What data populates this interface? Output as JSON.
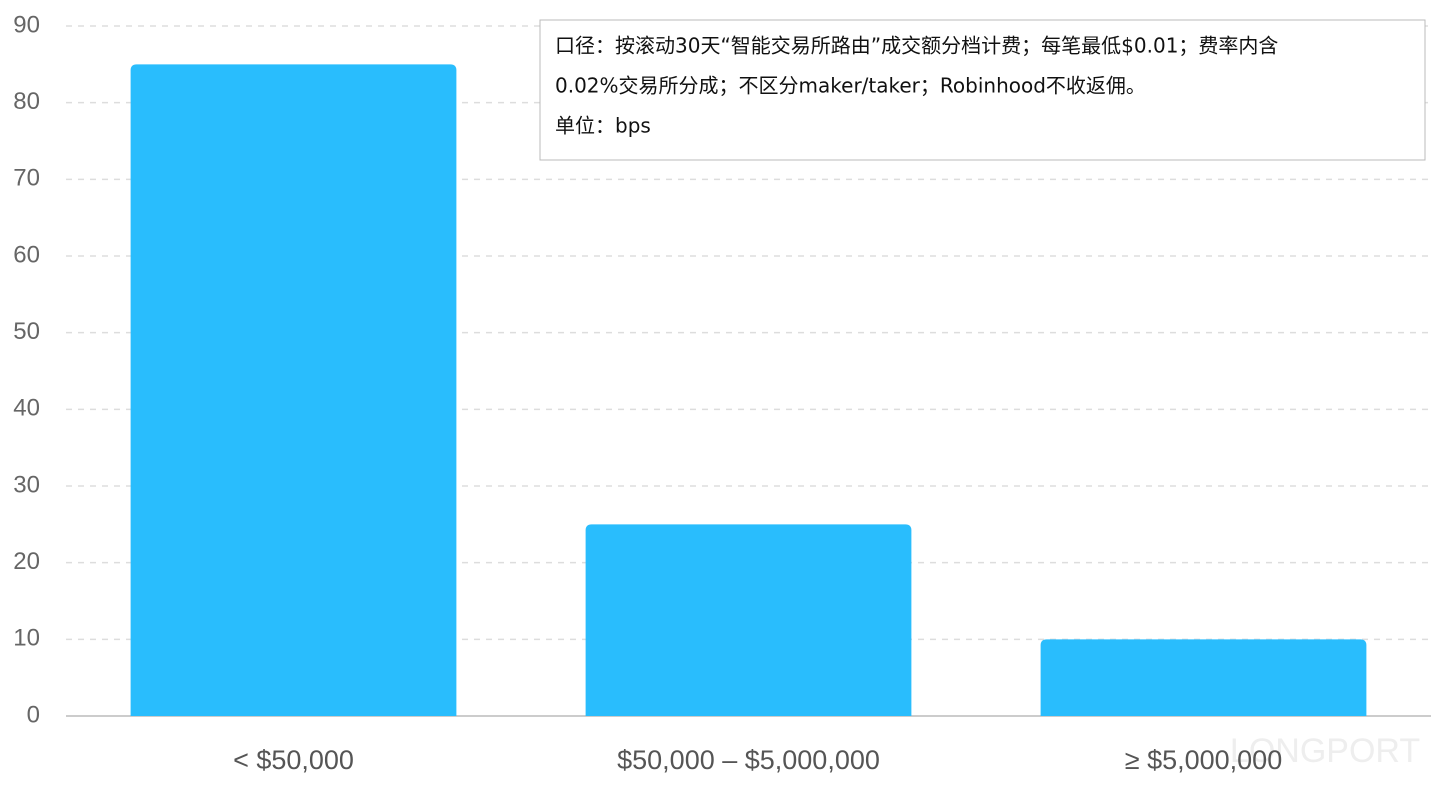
{
  "chart_data": {
    "type": "bar",
    "categories": [
      "< $50,000",
      "$50,000 – $5,000,000",
      "≥ $5,000,000"
    ],
    "values": [
      85,
      25,
      10
    ],
    "color": "#29bdfd",
    "ylim": [
      0,
      90
    ],
    "yticks": [
      0,
      10,
      20,
      30,
      40,
      50,
      60,
      70,
      80,
      90
    ],
    "grid": true,
    "annotation": [
      "口径：按滚动30天“智能交易所路由”成交额分档计费；每笔最低$0.01；费率内含",
      "0.02%交易所分成；不区分maker/taker；Robinhood不收返佣。",
      "单位：bps"
    ],
    "watermark": "LONGPORT"
  }
}
